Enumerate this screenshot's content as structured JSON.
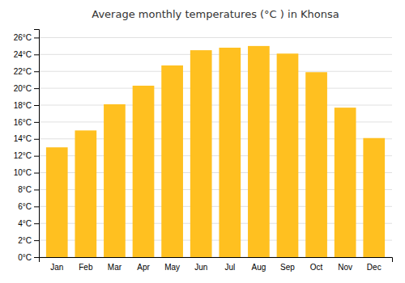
{
  "chart_data": {
    "type": "bar",
    "title": "Average monthly temperatures (°C ) in Khonsa",
    "categories": [
      "Jan",
      "Feb",
      "Mar",
      "Apr",
      "May",
      "Jun",
      "Jul",
      "Aug",
      "Sep",
      "Oct",
      "Nov",
      "Dec"
    ],
    "values": [
      13.0,
      15.0,
      18.1,
      20.3,
      22.7,
      24.5,
      24.8,
      25.0,
      24.1,
      21.9,
      17.7,
      14.1
    ],
    "color": "#FFC020",
    "ylim": [
      0,
      27
    ],
    "yticks": [
      {
        "value": 0,
        "label": "0°C"
      },
      {
        "value": 2,
        "label": "2°C"
      },
      {
        "value": 4,
        "label": "4°C"
      },
      {
        "value": 6,
        "label": "6°C"
      },
      {
        "value": 8,
        "label": "8°C"
      },
      {
        "value": 10,
        "label": "10°C"
      },
      {
        "value": 12,
        "label": "12°C"
      },
      {
        "value": 14,
        "label": "14°C"
      },
      {
        "value": 16,
        "label": "16°C"
      },
      {
        "value": 18,
        "label": "18°C"
      },
      {
        "value": 20,
        "label": "20°C"
      },
      {
        "value": 22,
        "label": "22°C"
      },
      {
        "value": 24,
        "label": "24°C"
      },
      {
        "value": 26,
        "label": "26°C"
      }
    ],
    "grid": true
  }
}
